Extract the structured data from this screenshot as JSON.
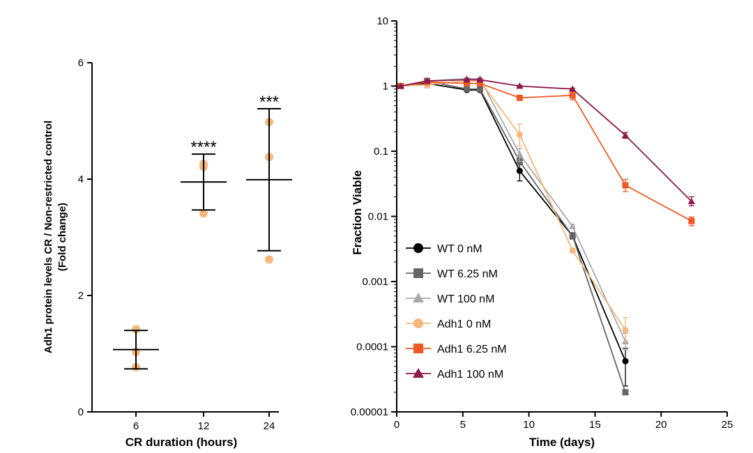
{
  "chart_data": [
    {
      "type": "scatter",
      "subtype": "dot plot with mean and SD bars",
      "xlabel": "CR duration (hours)",
      "ylabel_line1": "Adh1 protein levels CR / Non-restricted control",
      "ylabel_line2": "(Fold change)",
      "ylim": [
        0,
        6
      ],
      "yticks": [
        0,
        2,
        4,
        6
      ],
      "categories": [
        "6",
        "12",
        "24"
      ],
      "point_color": "#f4b77c",
      "groups": [
        {
          "category": "6",
          "points": [
            1.42,
            1.03,
            0.77
          ],
          "mean": 1.07,
          "sd_low": 0.74,
          "sd_high": 1.4,
          "significance": ""
        },
        {
          "category": "12",
          "points": [
            4.26,
            4.21,
            3.41
          ],
          "mean": 3.95,
          "sd_low": 3.47,
          "sd_high": 4.43,
          "significance": "****"
        },
        {
          "category": "24",
          "points": [
            4.98,
            4.38,
            2.62
          ],
          "mean": 3.99,
          "sd_low": 2.77,
          "sd_high": 5.21,
          "significance": "***"
        }
      ]
    },
    {
      "type": "line",
      "yscale": "log",
      "xlabel": "Time (days)",
      "ylabel": "Fraction Viable",
      "xlim": [
        0,
        25
      ],
      "xticks": [
        0,
        5,
        10,
        15,
        20,
        25
      ],
      "ylim": [
        1e-05,
        10
      ],
      "yticks": [
        1e-05,
        0.0001,
        0.001,
        0.01,
        0.1,
        1,
        10
      ],
      "ytick_labels": [
        "0.00001",
        "0.0001",
        "0.001",
        "0.01",
        "0.1",
        "1",
        "10"
      ],
      "legend_position": "bottom-left",
      "series": [
        {
          "name": "WT 0 nM",
          "color": "#000000",
          "marker": "circle",
          "x": [
            0.3,
            2.3,
            5.3,
            6.3,
            9.3,
            13.3,
            17.3
          ],
          "y": [
            1.0,
            1.1,
            0.87,
            0.87,
            0.05,
            0.005,
            6e-05
          ],
          "err_low": [
            0.97,
            0.95,
            0.85,
            0.85,
            0.035,
            0.0045,
            2.5e-05
          ],
          "err_high": [
            1.03,
            1.22,
            0.9,
            0.9,
            0.065,
            0.0056,
            9.5e-05
          ]
        },
        {
          "name": "WT 6.25 nM",
          "color": "#666666",
          "marker": "square",
          "x": [
            0.3,
            2.3,
            5.3,
            6.3,
            9.3,
            13.3,
            17.3
          ],
          "y": [
            1.0,
            1.2,
            0.9,
            0.9,
            0.07,
            0.005,
            2e-05
          ],
          "err_low": [
            0.97,
            1.12,
            0.87,
            0.87,
            0.062,
            0.0047,
            1.9e-05
          ],
          "err_high": [
            1.03,
            1.3,
            0.93,
            0.93,
            0.08,
            0.0054,
            2.1e-05
          ]
        },
        {
          "name": "WT 100 nM",
          "color": "#a8a8ae",
          "marker": "triangle",
          "x": [
            0.3,
            2.3,
            5.3,
            6.3,
            9.3,
            13.3,
            17.3
          ],
          "y": [
            1.0,
            1.2,
            1.3,
            1.3,
            0.09,
            0.007,
            0.00012
          ],
          "err_low": [
            0.97,
            1.13,
            1.25,
            1.25,
            0.07,
            0.0066,
            9e-05
          ],
          "err_high": [
            1.03,
            1.27,
            1.35,
            1.35,
            0.11,
            0.0075,
            0.00016
          ]
        },
        {
          "name": "Adh1 0 nM",
          "color": "#f4b77c",
          "marker": "circle",
          "x": [
            0.3,
            2.3,
            5.3,
            6.3,
            9.3,
            13.3,
            17.3
          ],
          "y": [
            1.0,
            1.05,
            1.2,
            1.2,
            0.18,
            0.003,
            0.00018
          ],
          "err_low": [
            0.97,
            0.95,
            1.15,
            1.15,
            0.12,
            0.0028,
            0.00012
          ],
          "err_high": [
            1.03,
            1.15,
            1.25,
            1.25,
            0.26,
            0.0032,
            0.00028
          ]
        },
        {
          "name": "Adh1 6.25 nM",
          "color": "#ef5a24",
          "marker": "square",
          "x": [
            0.3,
            2.3,
            5.3,
            6.3,
            9.3,
            13.3,
            17.3,
            22.3
          ],
          "y": [
            1.0,
            1.15,
            1.1,
            1.1,
            0.66,
            0.72,
            0.03,
            0.0085
          ],
          "err_low": [
            0.97,
            1.08,
            1.05,
            1.05,
            0.63,
            0.62,
            0.024,
            0.0072
          ],
          "err_high": [
            1.03,
            1.22,
            1.15,
            1.15,
            0.69,
            0.82,
            0.037,
            0.0098
          ]
        },
        {
          "name": "Adh1 100 nM",
          "color": "#8c1a4b",
          "marker": "triangle",
          "x": [
            0.3,
            2.3,
            5.3,
            6.3,
            9.3,
            13.3,
            17.3,
            22.3
          ],
          "y": [
            1.0,
            1.2,
            1.25,
            1.25,
            1.0,
            0.9,
            0.175,
            0.017
          ],
          "err_low": [
            0.97,
            1.15,
            1.2,
            1.2,
            0.97,
            0.87,
            0.158,
            0.0145
          ],
          "err_high": [
            1.03,
            1.25,
            1.3,
            1.3,
            1.03,
            0.93,
            0.195,
            0.02
          ]
        }
      ]
    }
  ]
}
